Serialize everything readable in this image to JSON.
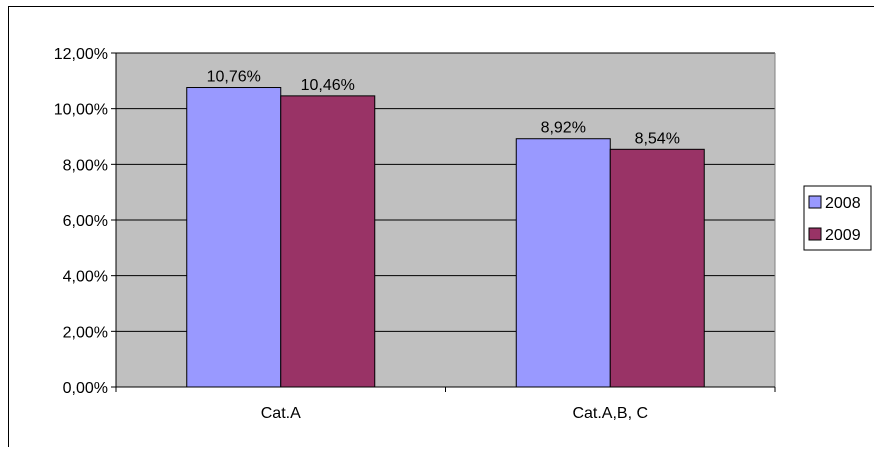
{
  "chart_data": {
    "type": "bar",
    "categories": [
      "Cat.A",
      "Cat.A,B, C"
    ],
    "series": [
      {
        "name": "2008",
        "values": [
          10.76,
          8.92
        ],
        "labels": [
          "10,76%",
          "8,92%"
        ],
        "color": "#9999FF"
      },
      {
        "name": "2009",
        "values": [
          10.46,
          8.54
        ],
        "labels": [
          "10,46%",
          "8,54%"
        ],
        "color": "#993366"
      }
    ],
    "ylim": [
      0,
      12
    ],
    "yticks": [
      {
        "value": 0,
        "label": "0,00%"
      },
      {
        "value": 2,
        "label": "2,00%"
      },
      {
        "value": 4,
        "label": "4,00%"
      },
      {
        "value": 6,
        "label": "6,00%"
      },
      {
        "value": 8,
        "label": "8,00%"
      },
      {
        "value": 10,
        "label": "10,00%"
      },
      {
        "value": 12,
        "label": "12,00%"
      }
    ],
    "title": "",
    "xlabel": "",
    "ylabel": "",
    "grid": true,
    "plot_background": "#C0C0C0",
    "legend_position": "right"
  }
}
